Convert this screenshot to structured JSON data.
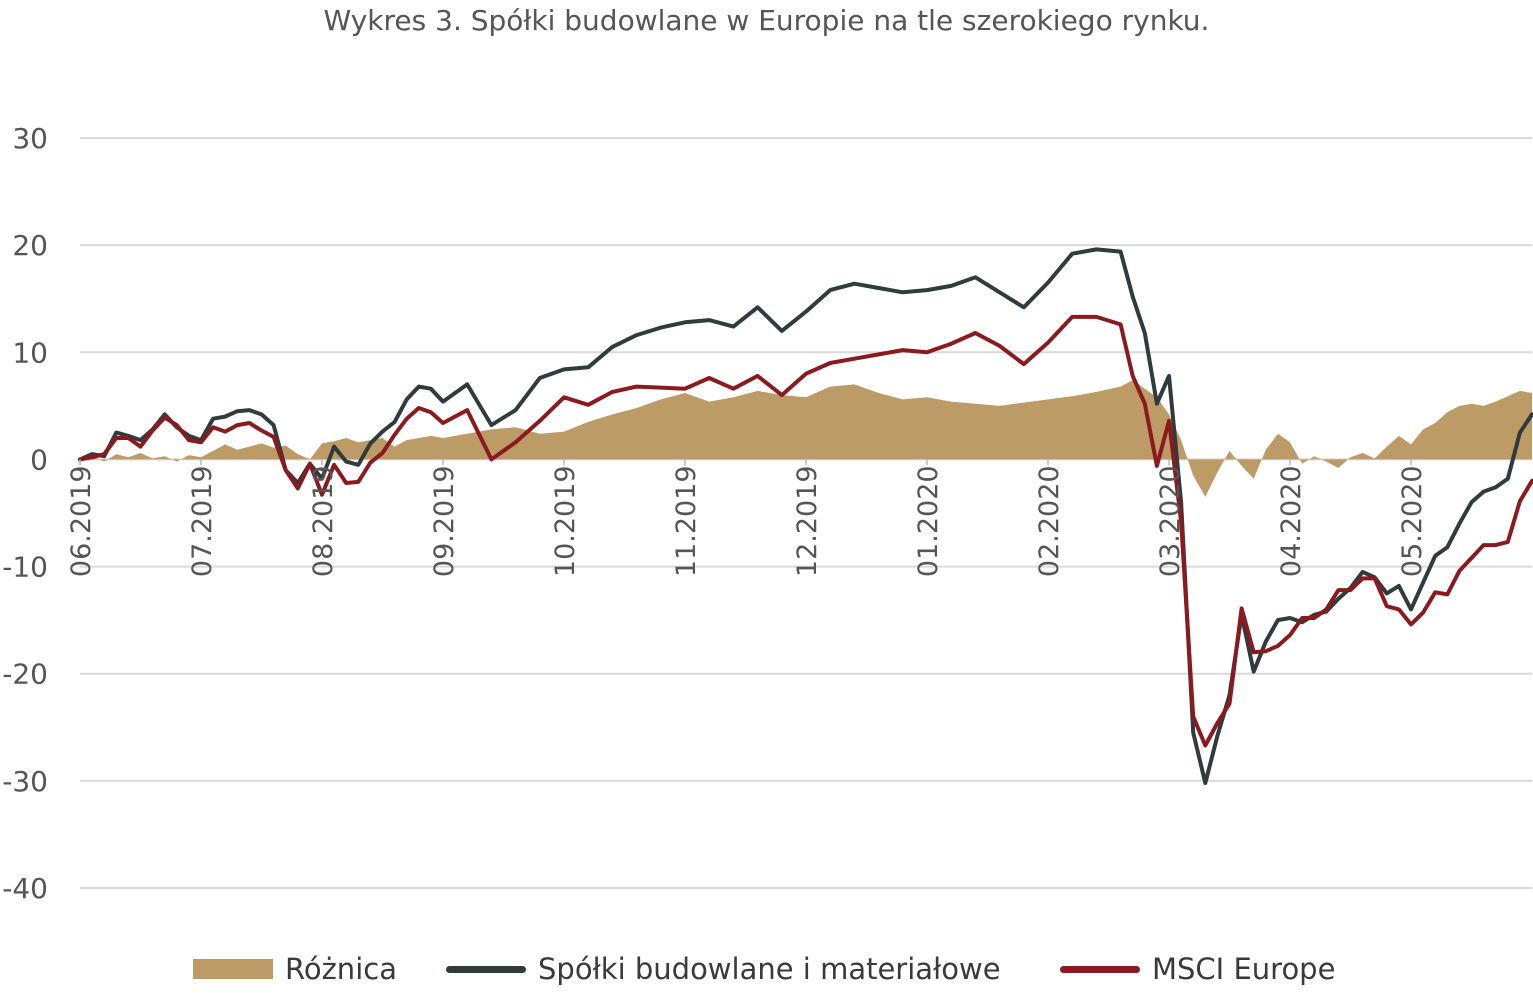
{
  "title": "Wykres 3. Spółki budowlane w Europie na tle szerokiego rynku.",
  "chart_data": {
    "type": "line",
    "title": "Wykres 3. Spółki budowlane w Europie na tle szerokiego rynku.",
    "ylim": [
      -40,
      30
    ],
    "yticks": [
      30,
      20,
      10,
      0,
      -10,
      -20,
      -30,
      -40
    ],
    "grid": true,
    "legend_position": "bottom",
    "x_tick_labels": [
      "06.2019",
      "07.2019",
      "08.2019",
      "09.2019",
      "10.2019",
      "11.2019",
      "12.2019",
      "01.2020",
      "02.2020",
      "03.2020",
      "04.2020",
      "05.2020"
    ],
    "x_range": [
      0,
      12
    ],
    "series": [
      {
        "name": "Różnica",
        "kind": "area",
        "color": "#bd9b66",
        "x": [
          0,
          0.1,
          0.2,
          0.3,
          0.4,
          0.5,
          0.6,
          0.7,
          0.8,
          0.9,
          1.0,
          1.1,
          1.2,
          1.3,
          1.4,
          1.5,
          1.6,
          1.7,
          1.8,
          1.9,
          2.0,
          2.1,
          2.2,
          2.3,
          2.4,
          2.5,
          2.6,
          2.7,
          2.8,
          2.9,
          3.0,
          3.2,
          3.4,
          3.6,
          3.8,
          4.0,
          4.2,
          4.4,
          4.6,
          4.8,
          5.0,
          5.2,
          5.4,
          5.6,
          5.8,
          6.0,
          6.2,
          6.4,
          6.6,
          6.8,
          7.0,
          7.2,
          7.4,
          7.6,
          7.8,
          8.0,
          8.2,
          8.4,
          8.6,
          8.7,
          8.8,
          8.9,
          9.0,
          9.1,
          9.2,
          9.3,
          9.4,
          9.5,
          9.6,
          9.7,
          9.8,
          9.9,
          10.0,
          10.1,
          10.2,
          10.3,
          10.4,
          10.5,
          10.6,
          10.7,
          10.8,
          10.9,
          11.0,
          11.1,
          11.2,
          11.3,
          11.4,
          11.5,
          11.6,
          11.7,
          11.8,
          11.9,
          12.0
        ],
        "values": [
          0.0,
          0.3,
          -0.2,
          0.5,
          0.2,
          0.6,
          0.1,
          0.3,
          -0.2,
          0.4,
          0.2,
          0.8,
          1.4,
          0.9,
          1.2,
          1.5,
          1.1,
          1.3,
          0.5,
          0.0,
          1.5,
          1.7,
          2.0,
          1.6,
          1.8,
          2.0,
          1.2,
          1.8,
          2.0,
          2.2,
          2.0,
          2.4,
          2.8,
          3.0,
          2.4,
          2.6,
          3.5,
          4.2,
          4.8,
          5.6,
          6.2,
          5.4,
          5.8,
          6.4,
          6.0,
          5.8,
          6.8,
          7.0,
          6.2,
          5.6,
          5.8,
          5.4,
          5.2,
          5.0,
          5.3,
          5.6,
          5.9,
          6.3,
          6.8,
          7.4,
          6.6,
          5.8,
          4.2,
          1.8,
          -1.5,
          -3.5,
          -1.2,
          0.8,
          -0.6,
          -1.8,
          0.9,
          2.4,
          1.6,
          -0.4,
          0.3,
          -0.2,
          -0.8,
          0.2,
          0.6,
          0.1,
          1.2,
          2.2,
          1.4,
          2.8,
          3.4,
          4.4,
          5.0,
          5.2,
          5.0,
          5.4,
          5.9,
          6.4,
          6.2
        ]
      },
      {
        "name": "Spółki budowlane i materiałowe",
        "kind": "line",
        "color": "#2f3b3d",
        "x": [
          0,
          0.1,
          0.2,
          0.3,
          0.4,
          0.5,
          0.6,
          0.7,
          0.8,
          0.9,
          1.0,
          1.1,
          1.2,
          1.3,
          1.4,
          1.5,
          1.6,
          1.7,
          1.8,
          1.9,
          2.0,
          2.1,
          2.2,
          2.3,
          2.4,
          2.5,
          2.6,
          2.7,
          2.8,
          2.9,
          3.0,
          3.2,
          3.4,
          3.6,
          3.8,
          4.0,
          4.2,
          4.4,
          4.6,
          4.8,
          5.0,
          5.2,
          5.4,
          5.6,
          5.8,
          6.0,
          6.2,
          6.4,
          6.6,
          6.8,
          7.0,
          7.2,
          7.4,
          7.6,
          7.8,
          8.0,
          8.2,
          8.4,
          8.6,
          8.7,
          8.8,
          8.9,
          9.0,
          9.1,
          9.2,
          9.3,
          9.4,
          9.5,
          9.6,
          9.7,
          9.8,
          9.9,
          10.0,
          10.1,
          10.2,
          10.3,
          10.4,
          10.5,
          10.6,
          10.7,
          10.8,
          10.9,
          11.0,
          11.1,
          11.2,
          11.3,
          11.4,
          11.5,
          11.6,
          11.7,
          11.8,
          11.9,
          12.0
        ],
        "values": [
          0.0,
          0.5,
          0.3,
          2.5,
          2.2,
          1.8,
          2.8,
          4.2,
          3.0,
          2.2,
          1.8,
          3.8,
          4.0,
          4.5,
          4.6,
          4.2,
          3.2,
          -1.0,
          -2.2,
          -0.4,
          -1.8,
          1.2,
          -0.2,
          -0.5,
          1.5,
          2.6,
          3.5,
          5.6,
          6.8,
          6.6,
          5.4,
          7.0,
          3.2,
          4.6,
          7.6,
          8.4,
          8.6,
          10.5,
          11.6,
          12.3,
          12.8,
          13.0,
          12.4,
          14.2,
          12.0,
          13.8,
          15.8,
          16.4,
          16.0,
          15.6,
          15.8,
          16.2,
          17.0,
          15.6,
          14.2,
          16.5,
          19.2,
          19.6,
          19.4,
          15.2,
          11.8,
          5.2,
          7.8,
          -4.0,
          -25.5,
          -30.2,
          -25.8,
          -22.0,
          -14.5,
          -19.8,
          -17.0,
          -15.0,
          -14.8,
          -15.2,
          -14.5,
          -14.2,
          -13.0,
          -12.0,
          -10.5,
          -11.0,
          -12.5,
          -11.8,
          -14.0,
          -11.5,
          -9.0,
          -8.2,
          -6.0,
          -4.0,
          -3.0,
          -2.6,
          -1.8,
          2.5,
          4.2
        ]
      },
      {
        "name": "MSCI Europe",
        "kind": "line",
        "color": "#8b1a1f",
        "x": [
          0,
          0.1,
          0.2,
          0.3,
          0.4,
          0.5,
          0.6,
          0.7,
          0.8,
          0.9,
          1.0,
          1.1,
          1.2,
          1.3,
          1.4,
          1.5,
          1.6,
          1.7,
          1.8,
          1.9,
          2.0,
          2.1,
          2.2,
          2.3,
          2.4,
          2.5,
          2.6,
          2.7,
          2.8,
          2.9,
          3.0,
          3.2,
          3.4,
          3.6,
          3.8,
          4.0,
          4.2,
          4.4,
          4.6,
          4.8,
          5.0,
          5.2,
          5.4,
          5.6,
          5.8,
          6.0,
          6.2,
          6.4,
          6.6,
          6.8,
          7.0,
          7.2,
          7.4,
          7.6,
          7.8,
          8.0,
          8.2,
          8.4,
          8.6,
          8.7,
          8.8,
          8.9,
          9.0,
          9.1,
          9.2,
          9.3,
          9.4,
          9.5,
          9.6,
          9.7,
          9.8,
          9.9,
          10.0,
          10.1,
          10.2,
          10.3,
          10.4,
          10.5,
          10.6,
          10.7,
          10.8,
          10.9,
          11.0,
          11.1,
          11.2,
          11.3,
          11.4,
          11.5,
          11.6,
          11.7,
          11.8,
          11.9,
          12.0
        ],
        "values": [
          0.0,
          0.2,
          0.5,
          2.0,
          2.0,
          1.2,
          2.7,
          3.9,
          3.2,
          1.8,
          1.6,
          3.0,
          2.6,
          3.2,
          3.4,
          2.7,
          2.1,
          -1.0,
          -2.7,
          -0.4,
          -3.3,
          -0.5,
          -2.2,
          -2.1,
          -0.3,
          0.6,
          2.3,
          3.8,
          4.8,
          4.4,
          3.4,
          4.6,
          0.0,
          1.6,
          3.6,
          5.8,
          5.1,
          6.3,
          6.8,
          6.7,
          6.6,
          7.6,
          6.6,
          7.8,
          6.0,
          8.0,
          9.0,
          9.4,
          9.8,
          10.2,
          10.0,
          10.8,
          11.8,
          10.6,
          8.9,
          10.9,
          13.3,
          13.3,
          12.6,
          7.8,
          5.2,
          -0.6,
          3.6,
          -5.8,
          -24.0,
          -26.7,
          -24.6,
          -22.8,
          -13.9,
          -18.0,
          -17.9,
          -17.4,
          -16.4,
          -14.8,
          -14.8,
          -14.0,
          -12.2,
          -12.2,
          -11.1,
          -11.1,
          -13.7,
          -14.0,
          -15.4,
          -14.3,
          -12.4,
          -12.6,
          -10.4,
          -9.2,
          -8.0,
          -8.0,
          -7.7,
          -3.9,
          -2.0
        ]
      }
    ]
  },
  "legend": [
    {
      "label": "Różnica",
      "color": "#bd9b66"
    },
    {
      "label": "Spółki budowlane i materiałowe",
      "color": "#2f3b3d"
    },
    {
      "label": "MSCI Europe",
      "color": "#8b1a1f"
    }
  ]
}
